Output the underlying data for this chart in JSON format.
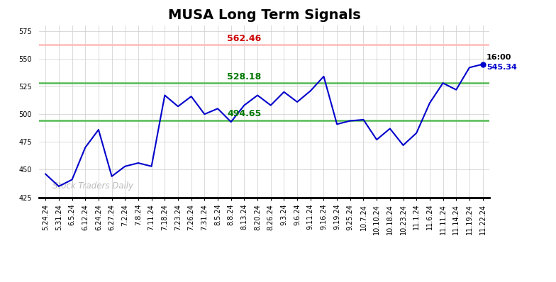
{
  "title": "MUSA Long Term Signals",
  "watermark": "Stock Traders Daily",
  "hline_red": 562.46,
  "hline_green_upper": 528.18,
  "hline_green_lower": 494.65,
  "label_red": "562.46",
  "label_green_upper": "528.18",
  "label_green_lower": "494.65",
  "last_price": 545.34,
  "last_time": "16:00",
  "ylim": [
    425,
    580
  ],
  "yticks": [
    425,
    450,
    475,
    500,
    525,
    550,
    575
  ],
  "x_labels": [
    "5.24.24",
    "5.31.24",
    "6.5.24",
    "6.12.24",
    "6.24.24",
    "6.27.24",
    "7.2.24",
    "7.8.24",
    "7.11.24",
    "7.18.24",
    "7.23.24",
    "7.26.24",
    "7.31.24",
    "8.5.24",
    "8.8.24",
    "8.13.24",
    "8.20.24",
    "8.26.24",
    "9.3.24",
    "9.6.24",
    "9.11.24",
    "9.16.24",
    "9.19.24",
    "9.25.24",
    "10.7.24",
    "10.10.24",
    "10.18.24",
    "10.23.24",
    "11.1.24",
    "11.6.24",
    "11.11.24",
    "11.14.24",
    "11.19.24",
    "11.22.24"
  ],
  "y_values": [
    446,
    435,
    441,
    470,
    486,
    444,
    453,
    456,
    453,
    517,
    507,
    516,
    500,
    505,
    493,
    508,
    517,
    508,
    520,
    511,
    521,
    534,
    491,
    494,
    495,
    477,
    487,
    472,
    483,
    510,
    528,
    522,
    542,
    545
  ],
  "line_color": "#0000cc",
  "hline_red_color": "#ffbbbb",
  "hline_red_label_color": "#cc0000",
  "hline_green_color": "#55bb55",
  "hline_green_label_color": "#007700",
  "bg_color": "#ffffff",
  "plot_bg_color": "#ffffff",
  "grid_color": "#cccccc",
  "watermark_color": "#bbbbbb",
  "title_fontsize": 14,
  "tick_fontsize": 7,
  "annotation_fontsize": 9
}
